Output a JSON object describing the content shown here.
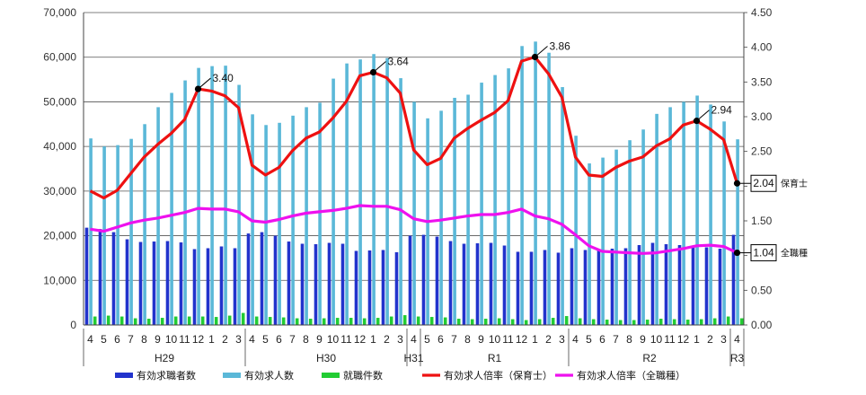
{
  "chart_data": {
    "type": "bar",
    "months": [
      "4",
      "5",
      "6",
      "7",
      "8",
      "9",
      "10",
      "11",
      "12",
      "1",
      "2",
      "3",
      "4",
      "5",
      "6",
      "7",
      "8",
      "9",
      "10",
      "11",
      "12",
      "1",
      "2",
      "3",
      "4",
      "5",
      "6",
      "7",
      "8",
      "9",
      "10",
      "11",
      "12",
      "1",
      "2",
      "3",
      "4",
      "5",
      "6",
      "7",
      "8",
      "9",
      "10",
      "11",
      "12",
      "1",
      "2",
      "3",
      "4"
    ],
    "eras": [
      {
        "label": "H29",
        "start": 0,
        "end": 11
      },
      {
        "label": "H30",
        "start": 12,
        "end": 23
      },
      {
        "label": "H31",
        "start": 24,
        "end": 24
      },
      {
        "label": "R1",
        "start": 25,
        "end": 35
      },
      {
        "label": "R2",
        "start": 36,
        "end": 47
      },
      {
        "label": "R3",
        "start": 48,
        "end": 48
      }
    ],
    "y_left": {
      "min": 0,
      "max": 70000,
      "ticks": [
        "0",
        "10,000",
        "20,000",
        "30,000",
        "40,000",
        "50,000",
        "60,000",
        "70,000"
      ]
    },
    "y_right": {
      "min": 0,
      "max": 4.5,
      "ticks": [
        "0.00",
        "0.50",
        "1.00",
        "1.50",
        "2.00",
        "2.50",
        "3.00",
        "3.50",
        "4.00",
        "4.50"
      ]
    },
    "series": [
      {
        "name": "有効求職者数",
        "kind": "bar",
        "axis": "left",
        "color": "#2233cc",
        "values": [
          21800,
          21500,
          20800,
          19200,
          18600,
          18700,
          18800,
          18500,
          17000,
          17200,
          17600,
          17200,
          20500,
          20800,
          20000,
          18700,
          18200,
          18100,
          18400,
          18200,
          16600,
          16700,
          16800,
          16300,
          20000,
          20200,
          19800,
          18800,
          18200,
          18300,
          18400,
          17800,
          16400,
          16400,
          16800,
          16200,
          17200,
          16800,
          17000,
          17100,
          17200,
          17900,
          18400,
          18100,
          17900,
          17600,
          17400,
          17100,
          20200
        ]
      },
      {
        "name": "有効求人数",
        "kind": "bar",
        "axis": "left",
        "color": "#5bb8d8",
        "values": [
          41800,
          40000,
          40300,
          41700,
          45000,
          48800,
          52000,
          54800,
          57600,
          58000,
          58100,
          53800,
          47200,
          44800,
          45300,
          46900,
          48800,
          49800,
          55200,
          58600,
          59500,
          60700,
          59800,
          55300,
          50000,
          46300,
          48000,
          50900,
          51600,
          54300,
          56000,
          57500,
          62500,
          63500,
          61000,
          53300,
          42400,
          36200,
          37500,
          39300,
          41400,
          43800,
          47300,
          48800,
          50000,
          51400,
          49400,
          45600,
          41600
        ]
      },
      {
        "name": "就職件数",
        "kind": "bar",
        "axis": "left",
        "color": "#22cc33",
        "values": [
          1900,
          2100,
          1900,
          1500,
          1400,
          1600,
          1900,
          1900,
          1900,
          1800,
          2100,
          2700,
          1900,
          1800,
          1700,
          1500,
          1400,
          1500,
          1600,
          1600,
          1500,
          1600,
          1900,
          2200,
          1900,
          1800,
          1700,
          1400,
          1300,
          1400,
          1500,
          1300,
          1100,
          1300,
          1600,
          2000,
          1500,
          1300,
          1200,
          1100,
          1100,
          1200,
          1400,
          1300,
          1200,
          1300,
          1500,
          1900,
          1500
        ]
      },
      {
        "name": "有効求人倍率（保育士）",
        "kind": "line",
        "axis": "right",
        "color": "#ee1111",
        "values": [
          1.93,
          1.83,
          1.94,
          2.18,
          2.42,
          2.6,
          2.76,
          2.96,
          3.4,
          3.37,
          3.3,
          3.13,
          2.3,
          2.16,
          2.27,
          2.51,
          2.69,
          2.78,
          2.98,
          3.22,
          3.59,
          3.64,
          3.56,
          3.34,
          2.52,
          2.31,
          2.4,
          2.69,
          2.83,
          2.95,
          3.06,
          3.23,
          3.8,
          3.86,
          3.62,
          3.28,
          2.42,
          2.16,
          2.14,
          2.27,
          2.36,
          2.42,
          2.58,
          2.68,
          2.88,
          2.94,
          2.82,
          2.67,
          2.04
        ]
      },
      {
        "name": "有効求人倍率（全職種）",
        "kind": "line",
        "axis": "right",
        "color": "#ee11ee",
        "values": [
          1.38,
          1.35,
          1.41,
          1.47,
          1.51,
          1.54,
          1.58,
          1.62,
          1.68,
          1.67,
          1.67,
          1.63,
          1.5,
          1.48,
          1.52,
          1.57,
          1.61,
          1.63,
          1.65,
          1.68,
          1.72,
          1.71,
          1.71,
          1.66,
          1.53,
          1.49,
          1.51,
          1.54,
          1.57,
          1.59,
          1.59,
          1.62,
          1.67,
          1.57,
          1.53,
          1.45,
          1.3,
          1.14,
          1.06,
          1.05,
          1.04,
          1.03,
          1.04,
          1.07,
          1.1,
          1.14,
          1.15,
          1.13,
          1.04
        ]
      }
    ],
    "annotations": [
      {
        "series": 3,
        "index": 8,
        "text": "3.40",
        "boxed": false,
        "suffix": ""
      },
      {
        "series": 3,
        "index": 21,
        "text": "3.64",
        "boxed": false,
        "suffix": ""
      },
      {
        "series": 3,
        "index": 33,
        "text": "3.86",
        "boxed": false,
        "suffix": ""
      },
      {
        "series": 3,
        "index": 45,
        "text": "2.94",
        "boxed": false,
        "suffix": ""
      },
      {
        "series": 3,
        "index": 48,
        "text": "2.04",
        "boxed": true,
        "suffix": "保育士"
      },
      {
        "series": 4,
        "index": 48,
        "text": "1.04",
        "boxed": true,
        "suffix": "全職種"
      }
    ],
    "legend": [
      "有効求職者数",
      "有効求人数",
      "就職件数",
      "有効求人倍率（保育士）",
      "有効求人倍率（全職種）"
    ]
  }
}
